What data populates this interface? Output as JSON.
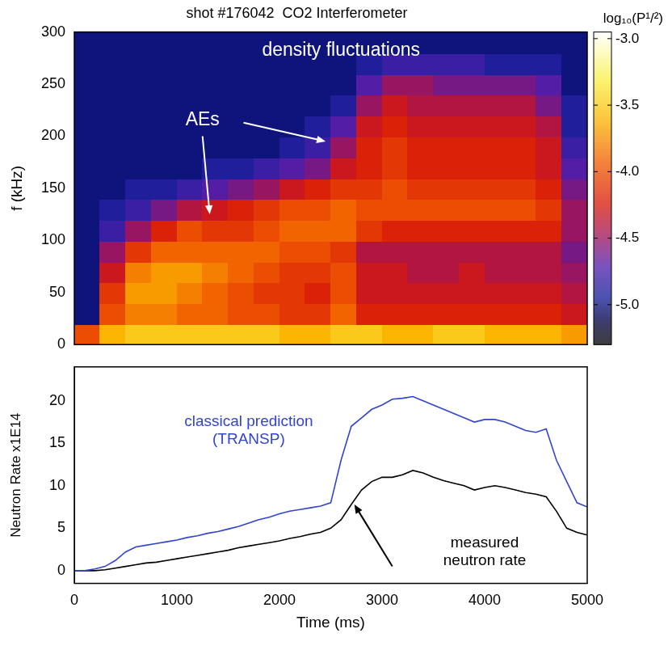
{
  "chart_data": [
    {
      "type": "heatmap",
      "title": "shot #176042  CO2 Interferometer",
      "y_label": "f (kHz)",
      "xlim": [
        0,
        5000
      ],
      "ylim": [
        0,
        300
      ],
      "yticks": [
        0,
        50,
        100,
        150,
        200,
        250,
        300
      ],
      "tick_labels": "y",
      "grid": false,
      "x_bins": [
        0,
        250,
        500,
        750,
        1000,
        1250,
        1500,
        1750,
        2000,
        2250,
        2500,
        2750,
        3000,
        3250,
        3500,
        3750,
        4000,
        4250,
        4500,
        4750,
        5000
      ],
      "y_bins": [
        0,
        20,
        40,
        60,
        80,
        100,
        120,
        140,
        160,
        180,
        200,
        220,
        240,
        260,
        280,
        300
      ],
      "z": [
        [
          -4.0,
          -3.6,
          -3.5,
          -3.5,
          -3.5,
          -3.5,
          -3.5,
          -3.5,
          -3.6,
          -3.6,
          -3.5,
          -3.5,
          -3.6,
          -3.6,
          -3.5,
          -3.5,
          -3.6,
          -3.6,
          -3.6,
          -3.7
        ],
        [
          -5.0,
          -4.0,
          -3.8,
          -3.8,
          -3.9,
          -3.9,
          -4.0,
          -4.0,
          -4.1,
          -4.1,
          -3.9,
          -4.2,
          -4.2,
          -4.2,
          -4.2,
          -4.2,
          -4.2,
          -4.2,
          -4.2,
          -4.3
        ],
        [
          -5.0,
          -4.1,
          -3.7,
          -3.7,
          -3.8,
          -3.9,
          -4.0,
          -4.1,
          -4.1,
          -4.2,
          -4.0,
          -4.3,
          -4.3,
          -4.3,
          -4.3,
          -4.3,
          -4.3,
          -4.3,
          -4.3,
          -4.4
        ],
        [
          -5.0,
          -4.3,
          -3.8,
          -3.7,
          -3.7,
          -3.8,
          -3.9,
          -4.0,
          -4.1,
          -4.1,
          -4.0,
          -4.3,
          -4.3,
          -4.4,
          -4.4,
          -4.3,
          -4.4,
          -4.4,
          -4.4,
          -4.5
        ],
        [
          -5.0,
          -4.5,
          -4.1,
          -3.9,
          -3.9,
          -3.9,
          -3.9,
          -3.9,
          -4.0,
          -4.0,
          -4.1,
          -4.4,
          -4.4,
          -4.4,
          -4.4,
          -4.4,
          -4.4,
          -4.4,
          -4.4,
          -4.6
        ],
        [
          -5.0,
          -4.8,
          -4.5,
          -4.2,
          -4.0,
          -4.1,
          -4.1,
          -4.0,
          -3.9,
          -3.9,
          -3.9,
          -4.1,
          -4.2,
          -4.2,
          -4.2,
          -4.2,
          -4.2,
          -4.2,
          -4.2,
          -4.5
        ],
        [
          -5.0,
          -4.9,
          -4.8,
          -4.6,
          -4.4,
          -4.3,
          -4.2,
          -4.1,
          -4.0,
          -4.0,
          -3.9,
          -4.0,
          -4.0,
          -4.0,
          -4.0,
          -4.0,
          -4.0,
          -4.0,
          -4.1,
          -4.5
        ],
        [
          -5.0,
          -5.0,
          -4.9,
          -4.9,
          -4.8,
          -4.7,
          -4.6,
          -4.5,
          -4.3,
          -4.2,
          -4.1,
          -4.1,
          -4.0,
          -4.1,
          -4.1,
          -4.1,
          -4.1,
          -4.1,
          -4.2,
          -4.6
        ],
        [
          -5.0,
          -5.0,
          -5.0,
          -5.0,
          -5.0,
          -4.9,
          -4.9,
          -4.8,
          -4.7,
          -4.6,
          -4.3,
          -4.2,
          -4.1,
          -4.2,
          -4.2,
          -4.2,
          -4.2,
          -4.2,
          -4.3,
          -4.7
        ],
        [
          -5.0,
          -5.0,
          -5.0,
          -5.0,
          -5.0,
          -5.0,
          -5.0,
          -5.0,
          -4.9,
          -4.8,
          -4.5,
          -4.2,
          -4.1,
          -4.2,
          -4.2,
          -4.2,
          -4.2,
          -4.2,
          -4.3,
          -4.8
        ],
        [
          -5.0,
          -5.0,
          -5.0,
          -5.0,
          -5.0,
          -5.0,
          -5.0,
          -5.0,
          -5.0,
          -4.9,
          -4.7,
          -4.3,
          -4.2,
          -4.3,
          -4.3,
          -4.3,
          -4.3,
          -4.3,
          -4.4,
          -4.9
        ],
        [
          -5.0,
          -5.0,
          -5.0,
          -5.0,
          -5.0,
          -5.0,
          -5.0,
          -5.0,
          -5.0,
          -5.0,
          -4.9,
          -4.5,
          -4.3,
          -4.4,
          -4.4,
          -4.4,
          -4.4,
          -4.4,
          -4.6,
          -4.9
        ],
        [
          -5.0,
          -5.0,
          -5.0,
          -5.0,
          -5.0,
          -5.0,
          -5.0,
          -5.0,
          -5.0,
          -5.0,
          -5.0,
          -4.7,
          -4.5,
          -4.5,
          -4.6,
          -4.6,
          -4.6,
          -4.6,
          -4.7,
          -5.0
        ],
        [
          -5.0,
          -5.0,
          -5.0,
          -5.0,
          -5.0,
          -5.0,
          -5.0,
          -5.0,
          -5.0,
          -5.0,
          -5.0,
          -4.9,
          -4.8,
          -4.8,
          -4.8,
          -4.8,
          -4.9,
          -4.9,
          -4.9,
          -5.0
        ],
        [
          -5.0,
          -5.0,
          -5.0,
          -5.0,
          -5.0,
          -5.0,
          -5.0,
          -5.0,
          -5.0,
          -5.0,
          -5.0,
          -5.0,
          -5.0,
          -5.0,
          -5.0,
          -5.0,
          -5.0,
          -5.0,
          -5.0,
          -5.0
        ]
      ],
      "colorbar": {
        "title": "log₁₀(P¹/²)",
        "range": [
          -5.3,
          -2.95
        ],
        "ticks": [
          {
            "value": -3,
            "label": "-3.0"
          },
          {
            "value": -3.5,
            "label": "-3.5"
          },
          {
            "value": -4,
            "label": "-4.0"
          },
          {
            "value": -4.5,
            "label": "-4.5"
          },
          {
            "value": -5,
            "label": "-5.0"
          }
        ]
      },
      "annotations": [
        {
          "text": "density fluctuations",
          "x": 2600,
          "y": 282
        },
        {
          "text": "AEs",
          "x": 1250,
          "y": 215,
          "arrows": [
            {
              "from": [
                1250,
                200
              ],
              "to": [
                1320,
                125
              ]
            },
            {
              "from": [
                1650,
                213
              ],
              "to": [
                2450,
                195
              ]
            }
          ]
        }
      ]
    },
    {
      "type": "line",
      "x_label": "Time (ms)",
      "y_label": "Neutron Rate x1E14",
      "xlim": [
        0,
        5000
      ],
      "xticks": [
        0,
        1000,
        2000,
        3000,
        4000,
        5000
      ],
      "ylim": [
        -1.5,
        24
      ],
      "yticks": [
        0,
        5,
        10,
        15,
        20
      ],
      "grid": false,
      "x": [
        0,
        100,
        200,
        300,
        400,
        500,
        600,
        700,
        800,
        900,
        1000,
        1100,
        1200,
        1300,
        1400,
        1500,
        1600,
        1700,
        1800,
        1900,
        2000,
        2100,
        2200,
        2300,
        2400,
        2500,
        2600,
        2700,
        2800,
        2900,
        3000,
        3100,
        3200,
        3300,
        3400,
        3500,
        3600,
        3700,
        3800,
        3900,
        4000,
        4100,
        4200,
        4300,
        4400,
        4500,
        4600,
        4700,
        4800,
        4900,
        5000
      ],
      "series": [
        {
          "name": "classical prediction (TRANSP)",
          "color": "#3344cc",
          "label_at": [
            1700,
            17.5
          ],
          "values": [
            0,
            0,
            0.2,
            0.5,
            1.2,
            2.2,
            2.8,
            3.0,
            3.2,
            3.4,
            3.6,
            3.9,
            4.1,
            4.4,
            4.6,
            4.9,
            5.2,
            5.6,
            6.0,
            6.3,
            6.7,
            7.0,
            7.2,
            7.4,
            7.6,
            8.0,
            13.0,
            17.0,
            18.0,
            19.0,
            19.5,
            20.2,
            20.3,
            20.5,
            20.0,
            19.5,
            19.0,
            18.5,
            18.0,
            17.5,
            17.8,
            17.8,
            17.5,
            17.0,
            16.5,
            16.3,
            16.7,
            13.0,
            10.5,
            8.0,
            7.5
          ]
        },
        {
          "name": "measured neutron rate",
          "color": "#000000",
          "label_at": [
            4000,
            3.2
          ],
          "arrow_from": [
            3100,
            0.5
          ],
          "arrow_to": [
            2730,
            7.8
          ],
          "values": [
            0,
            0,
            0,
            0.1,
            0.3,
            0.5,
            0.7,
            0.9,
            1.0,
            1.2,
            1.4,
            1.6,
            1.8,
            2.0,
            2.2,
            2.4,
            2.7,
            2.9,
            3.1,
            3.3,
            3.5,
            3.8,
            4.0,
            4.3,
            4.5,
            5.0,
            6.0,
            7.8,
            9.5,
            10.5,
            11.0,
            11.0,
            11.3,
            11.8,
            11.5,
            11.0,
            10.6,
            10.3,
            10.0,
            9.5,
            9.8,
            10.0,
            9.8,
            9.5,
            9.2,
            9.0,
            8.7,
            7.0,
            5.0,
            4.5,
            4.2
          ]
        }
      ]
    }
  ]
}
